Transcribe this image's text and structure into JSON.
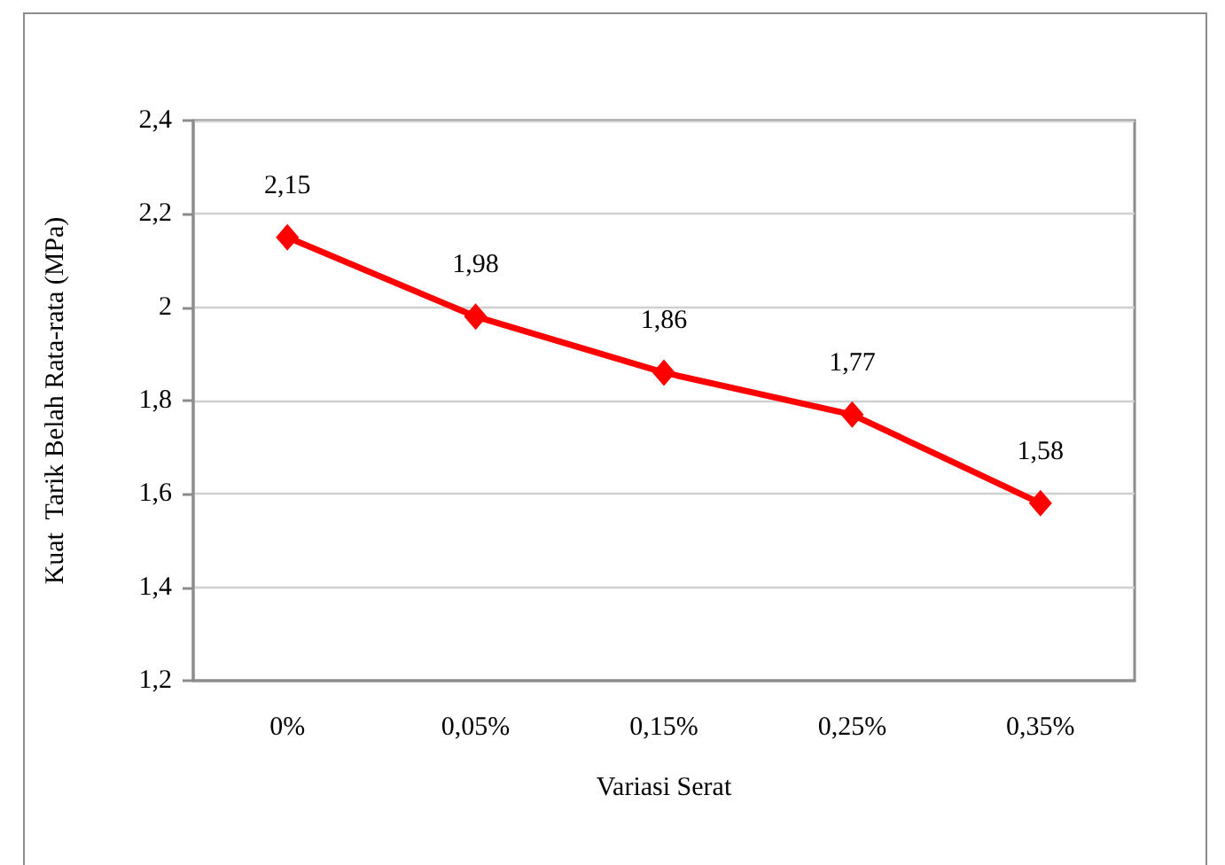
{
  "chart_data": {
    "type": "line",
    "xlabel": "Variasi Serat",
    "ylabel": "Kuat  Tarik Belah Rata-rata (MPa)",
    "categories": [
      "0%",
      "0,05%",
      "0,15%",
      "0,25%",
      "0,35%"
    ],
    "values": [
      2.15,
      1.98,
      1.86,
      1.77,
      1.58
    ],
    "color": "#ff0000",
    "value_labels": [
      "2,15",
      "1,98",
      "1,86",
      "1,77",
      "1,58"
    ],
    "ylim": [
      1.2,
      2.4
    ],
    "yticks": [
      {
        "value": 1.2,
        "label": "1,2"
      },
      {
        "value": 1.4,
        "label": "1,4"
      },
      {
        "value": 1.6,
        "label": "1,6"
      },
      {
        "value": 1.8,
        "label": "1,8"
      },
      2,
      {
        "value": 2.2,
        "label": "2,2"
      },
      {
        "value": 2.4,
        "label": "2,4"
      }
    ],
    "grid": "y",
    "marker": "diamond",
    "line_style": "solid"
  }
}
